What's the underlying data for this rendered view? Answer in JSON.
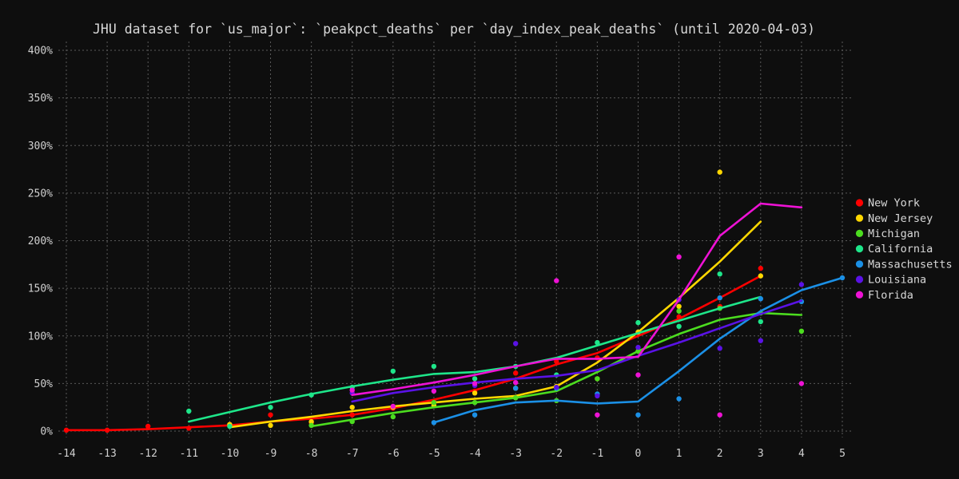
{
  "chart_data": {
    "type": "line",
    "title": "JHU dataset for `us_major`: `peakpct_deaths` per `day_index_peak_deaths` (until 2020-04-03)",
    "xlabel": "",
    "ylabel": "",
    "xlim": [
      -14,
      5
    ],
    "ylim": [
      0,
      400
    ],
    "grid": true,
    "legend_position": "right",
    "x_ticks": [
      -14,
      -13,
      -12,
      -11,
      -10,
      -9,
      -8,
      -7,
      -6,
      -5,
      -4,
      -3,
      -2,
      -1,
      0,
      1,
      2,
      3,
      4,
      5
    ],
    "y_ticks": [
      0,
      50,
      100,
      150,
      200,
      250,
      300,
      350,
      400
    ],
    "y_tick_labels": [
      "0%",
      "50%",
      "100%",
      "150%",
      "200%",
      "250%",
      "300%",
      "350%",
      "400%"
    ],
    "series": [
      {
        "name": "New York",
        "color": "#ff0000",
        "line": [
          [
            -14,
            1
          ],
          [
            -13,
            1
          ],
          [
            -12,
            2
          ],
          [
            -11,
            4
          ],
          [
            -10,
            6
          ],
          [
            -9,
            10
          ],
          [
            -8,
            13
          ],
          [
            -7,
            17
          ],
          [
            -6,
            24
          ],
          [
            -5,
            33
          ],
          [
            -4,
            43
          ],
          [
            -3,
            55
          ],
          [
            -2,
            70
          ],
          [
            -1,
            82
          ],
          [
            0,
            100
          ],
          [
            1,
            118
          ],
          [
            2,
            140
          ],
          [
            3,
            163
          ]
        ],
        "points": [
          [
            -14,
            1
          ],
          [
            -13,
            1
          ],
          [
            -12,
            5
          ],
          [
            -11,
            3
          ],
          [
            -10,
            6
          ],
          [
            -9,
            17
          ],
          [
            -8,
            9
          ],
          [
            -7,
            17
          ],
          [
            -6,
            24
          ],
          [
            -5,
            31
          ],
          [
            -4,
            42
          ],
          [
            -3,
            61
          ],
          [
            -2,
            73
          ],
          [
            -1,
            77
          ],
          [
            0,
            103
          ],
          [
            1,
            120
          ],
          [
            2,
            131
          ],
          [
            3,
            171
          ]
        ]
      },
      {
        "name": "New Jersey",
        "color": "#ffd700",
        "line": [
          [
            -10,
            4
          ],
          [
            -9,
            10
          ],
          [
            -8,
            15
          ],
          [
            -7,
            21
          ],
          [
            -6,
            26
          ],
          [
            -5,
            30
          ],
          [
            -4,
            34
          ],
          [
            -3,
            37
          ],
          [
            -2,
            47
          ],
          [
            -1,
            72
          ],
          [
            0,
            104
          ],
          [
            1,
            140
          ],
          [
            2,
            178
          ],
          [
            3,
            220
          ]
        ],
        "points": [
          [
            -10,
            7
          ],
          [
            -9,
            6
          ],
          [
            -8,
            10
          ],
          [
            -7,
            25
          ],
          [
            -6,
            25
          ],
          [
            -5,
            27
          ],
          [
            -4,
            40
          ],
          [
            -3,
            45
          ],
          [
            -2,
            47
          ],
          [
            -1,
            55
          ],
          [
            0,
            104
          ],
          [
            1,
            131
          ],
          [
            2,
            272
          ],
          [
            3,
            163
          ]
        ]
      },
      {
        "name": "Michigan",
        "color": "#4cdd1f",
        "line": [
          [
            -8,
            5
          ],
          [
            -7,
            12
          ],
          [
            -6,
            19
          ],
          [
            -5,
            25
          ],
          [
            -4,
            30
          ],
          [
            -3,
            35
          ],
          [
            -2,
            42
          ],
          [
            -1,
            62
          ],
          [
            0,
            84
          ],
          [
            1,
            102
          ],
          [
            2,
            117
          ],
          [
            3,
            124
          ],
          [
            4,
            122
          ]
        ],
        "points": [
          [
            -8,
            6
          ],
          [
            -7,
            10
          ],
          [
            -6,
            15
          ],
          [
            -5,
            30
          ],
          [
            -4,
            30
          ],
          [
            -3,
            35
          ],
          [
            -2,
            32
          ],
          [
            -1,
            55
          ],
          [
            0,
            84
          ],
          [
            1,
            126
          ],
          [
            2,
            129
          ],
          [
            3,
            124
          ],
          [
            4,
            105
          ]
        ]
      },
      {
        "name": "California",
        "color": "#1ee68a",
        "line": [
          [
            -11,
            10
          ],
          [
            -10,
            20
          ],
          [
            -9,
            30
          ],
          [
            -8,
            39
          ],
          [
            -7,
            47
          ],
          [
            -6,
            54
          ],
          [
            -5,
            60
          ],
          [
            -4,
            62
          ],
          [
            -3,
            68
          ],
          [
            -2,
            77
          ],
          [
            -1,
            90
          ],
          [
            0,
            103
          ],
          [
            1,
            116
          ],
          [
            2,
            129
          ],
          [
            3,
            141
          ]
        ],
        "points": [
          [
            -11,
            21
          ],
          [
            -10,
            5
          ],
          [
            -9,
            25
          ],
          [
            -8,
            38
          ],
          [
            -7,
            46
          ],
          [
            -6,
            63
          ],
          [
            -5,
            68
          ],
          [
            -4,
            55
          ],
          [
            -3,
            68
          ],
          [
            -2,
            59
          ],
          [
            -1,
            93
          ],
          [
            0,
            114
          ],
          [
            1,
            110
          ],
          [
            2,
            165
          ],
          [
            3,
            115
          ]
        ]
      },
      {
        "name": "Massachusetts",
        "color": "#1b90e6",
        "line": [
          [
            -5,
            9
          ],
          [
            -4,
            22
          ],
          [
            -3,
            30
          ],
          [
            -2,
            32
          ],
          [
            -1,
            29
          ],
          [
            0,
            31
          ],
          [
            1,
            63
          ],
          [
            2,
            97
          ],
          [
            3,
            126
          ],
          [
            4,
            148
          ],
          [
            5,
            161
          ]
        ],
        "points": [
          [
            -5,
            9
          ],
          [
            -4,
            17
          ],
          [
            -3,
            45
          ],
          [
            -2,
            45
          ],
          [
            -1,
            39
          ],
          [
            0,
            17
          ],
          [
            1,
            34
          ],
          [
            2,
            140
          ],
          [
            3,
            139
          ],
          [
            4,
            136
          ],
          [
            5,
            161
          ]
        ]
      },
      {
        "name": "Louisiana",
        "color": "#5a12e6",
        "line": [
          [
            -7,
            31
          ],
          [
            -6,
            40
          ],
          [
            -5,
            46
          ],
          [
            -4,
            51
          ],
          [
            -3,
            55
          ],
          [
            -2,
            58
          ],
          [
            -1,
            64
          ],
          [
            0,
            79
          ],
          [
            1,
            93
          ],
          [
            2,
            108
          ],
          [
            3,
            123
          ],
          [
            4,
            137
          ]
        ],
        "points": [
          [
            -7,
            40
          ],
          [
            -4,
            48
          ],
          [
            -3,
            92
          ],
          [
            -2,
            46
          ],
          [
            -1,
            37
          ],
          [
            0,
            88
          ],
          [
            1,
            138
          ],
          [
            2,
            87
          ],
          [
            3,
            95
          ],
          [
            4,
            154
          ]
        ]
      },
      {
        "name": "Florida",
        "color": "#ee12d5",
        "line": [
          [
            -7,
            38
          ],
          [
            -6,
            44
          ],
          [
            -5,
            51
          ],
          [
            -4,
            59
          ],
          [
            -3,
            68
          ],
          [
            -2,
            76
          ],
          [
            -1,
            76
          ],
          [
            0,
            78
          ],
          [
            1,
            138
          ],
          [
            2,
            205
          ],
          [
            3,
            239
          ],
          [
            4,
            235
          ]
        ],
        "points": [
          [
            -7,
            43
          ],
          [
            -6,
            26
          ],
          [
            -5,
            42
          ],
          [
            -4,
            50
          ],
          [
            -3,
            51
          ],
          [
            -2,
            158
          ],
          [
            -1,
            17
          ],
          [
            0,
            59
          ],
          [
            1,
            183
          ],
          [
            2,
            17
          ],
          [
            4,
            50
          ]
        ]
      }
    ]
  }
}
